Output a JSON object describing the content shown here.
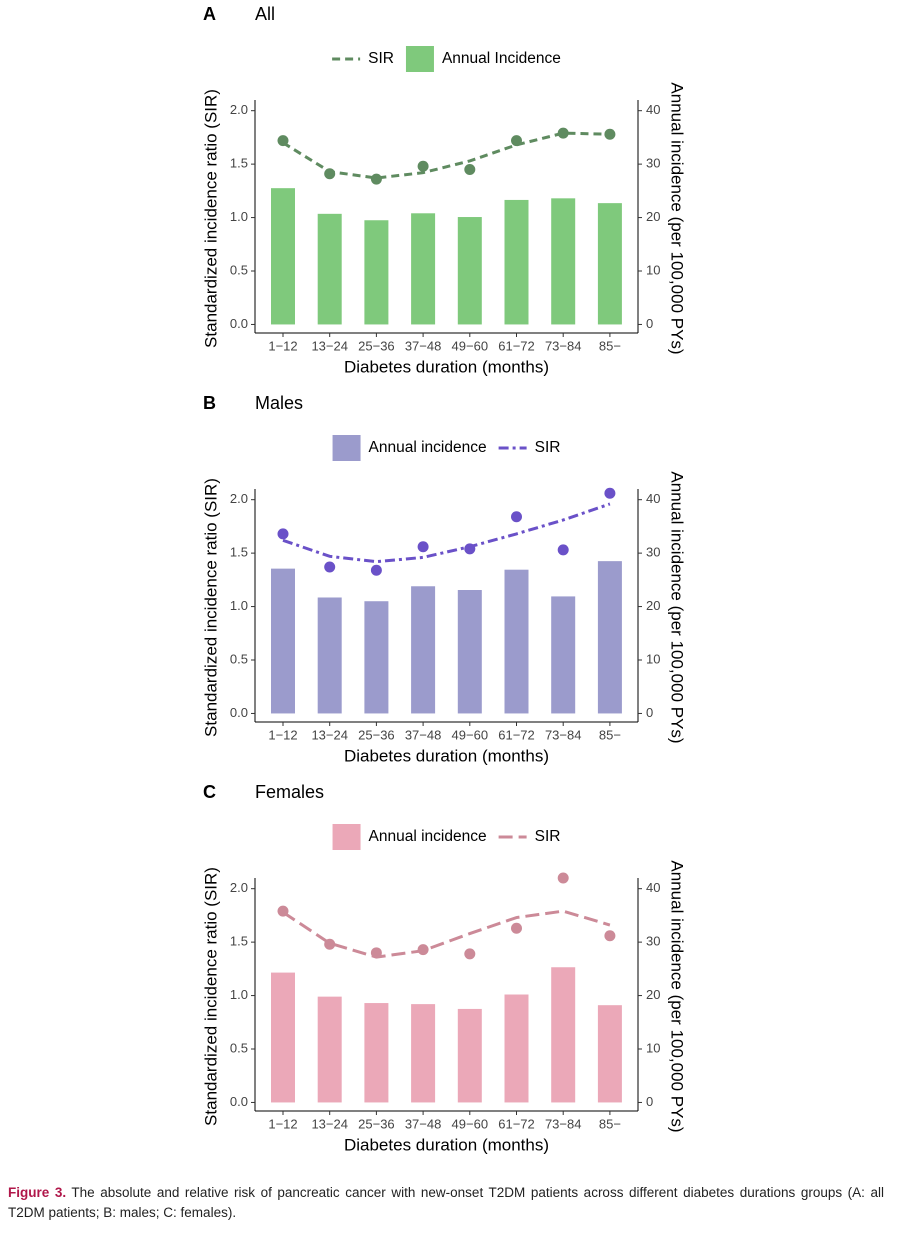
{
  "chart_data": [
    {
      "type": "bar_line",
      "panel": "A",
      "title": "All",
      "x_label": "Diabetes duration (months)",
      "y_label": "Standardized incidence ratio (SIR)",
      "y2_label": "Annual incidence (per 100,000 PYs)",
      "categories": [
        "1−12",
        "13−24",
        "25−36",
        "37−48",
        "49−60",
        "61−72",
        "73−84",
        "85−"
      ],
      "ylim": [
        -0.08,
        2.1
      ],
      "yticks": [
        {
          "value": 0,
          "label": "0.0"
        },
        {
          "value": 0.5,
          "label": "0.5"
        },
        {
          "value": 1,
          "label": "1.0"
        },
        {
          "value": 1.5,
          "label": "1.5"
        },
        {
          "value": 2,
          "label": "2.0"
        }
      ],
      "y2lim": [
        -1.6,
        42
      ],
      "y2ticks": [
        0,
        10,
        20,
        30,
        40
      ],
      "series": [
        {
          "name": "SIR",
          "kind": "line",
          "dash": "dashed",
          "color": "#5f8b60",
          "values": [
            1.72,
            1.41,
            1.36,
            1.48,
            1.45,
            1.72,
            1.79,
            1.78
          ],
          "trend": [
            1.7,
            1.43,
            1.37,
            1.42,
            1.53,
            1.68,
            1.79,
            1.78
          ]
        },
        {
          "name": "Annual Incidence",
          "kind": "bar",
          "axis": "y2",
          "color": "#7fc97c",
          "values": [
            25.5,
            20.7,
            19.5,
            20.8,
            20.1,
            23.3,
            23.6,
            22.7
          ]
        }
      ]
    },
    {
      "type": "bar_line",
      "panel": "B",
      "title": "Males",
      "x_label": "Diabetes duration (months)",
      "y_label": "Standardized incidence ratio (SIR)",
      "y2_label": "Annual incidence (per 100,000 PYs)",
      "categories": [
        "1−12",
        "13−24",
        "25−36",
        "37−48",
        "49−60",
        "61−72",
        "73−84",
        "85−"
      ],
      "ylim": [
        -0.08,
        2.1
      ],
      "yticks": [
        {
          "value": 0,
          "label": "0.0"
        },
        {
          "value": 0.5,
          "label": "0.5"
        },
        {
          "value": 1,
          "label": "1.0"
        },
        {
          "value": 1.5,
          "label": "1.5"
        },
        {
          "value": 2,
          "label": "2.0"
        }
      ],
      "y2lim": [
        -1.6,
        42
      ],
      "y2ticks": [
        0,
        10,
        20,
        30,
        40
      ],
      "series": [
        {
          "name": "Annual incidence",
          "kind": "bar",
          "axis": "y2",
          "color": "#9b9bcc",
          "values": [
            27.1,
            21.7,
            21.0,
            23.8,
            23.1,
            26.9,
            21.9,
            28.5
          ]
        },
        {
          "name": "SIR",
          "kind": "line",
          "dash": "dashdot",
          "color": "#6a51c8",
          "values": [
            1.68,
            1.37,
            1.34,
            1.56,
            1.54,
            1.84,
            1.53,
            2.06
          ],
          "trend": [
            1.62,
            1.47,
            1.42,
            1.46,
            1.56,
            1.68,
            1.81,
            1.96
          ]
        }
      ]
    },
    {
      "type": "bar_line",
      "panel": "C",
      "title": "Females",
      "x_label": "Diabetes duration (months)",
      "y_label": "Standardized incidence ratio (SIR)",
      "y2_label": "Annual incidence (per 100,000 PYs)",
      "categories": [
        "1−12",
        "13−24",
        "25−36",
        "37−48",
        "49−60",
        "61−72",
        "73−84",
        "85−"
      ],
      "ylim": [
        -0.08,
        2.1
      ],
      "yticks": [
        {
          "value": 0,
          "label": "0.0"
        },
        {
          "value": 0.5,
          "label": "0.5"
        },
        {
          "value": 1,
          "label": "1.0"
        },
        {
          "value": 1.5,
          "label": "1.5"
        },
        {
          "value": 2,
          "label": "2.0"
        }
      ],
      "y2lim": [
        -1.6,
        42
      ],
      "y2ticks": [
        0,
        10,
        20,
        30,
        40
      ],
      "series": [
        {
          "name": "Annual incidence",
          "kind": "bar",
          "axis": "y2",
          "color": "#eba8b8",
          "values": [
            24.3,
            19.8,
            18.6,
            18.4,
            17.5,
            20.2,
            25.3,
            18.2
          ]
        },
        {
          "name": "SIR",
          "kind": "line",
          "dash": "longdash",
          "color": "#cc8a98",
          "values": [
            1.79,
            1.48,
            1.4,
            1.43,
            1.39,
            1.63,
            2.1,
            1.56
          ],
          "trend": [
            1.78,
            1.49,
            1.36,
            1.42,
            1.58,
            1.73,
            1.79,
            1.66
          ]
        }
      ]
    }
  ],
  "caption": {
    "label": "Figure 3.",
    "text": "The absolute and relative risk of pancreatic cancer with new-onset T2DM patients across different diabetes durations groups (A: all T2DM patients; B: males; C: females)."
  }
}
